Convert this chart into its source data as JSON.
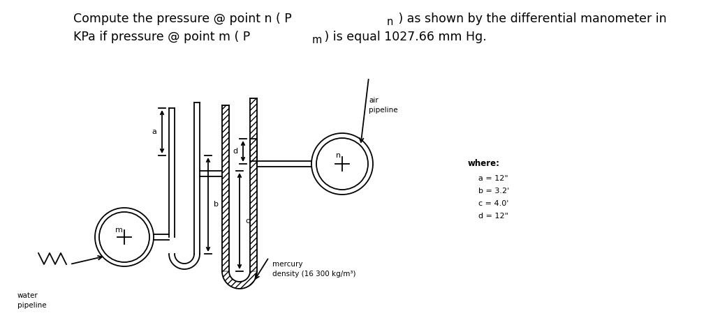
{
  "bg_color": "#ffffff",
  "line_color": "#000000",
  "font_size_title": 12.5,
  "font_size_small": 7.5,
  "font_size_label": 8,
  "where_label": "where:",
  "param_a": "a = 12\"",
  "param_b": "b = 3.2'",
  "param_c": "c = 4.0'",
  "param_d": "d = 12\"",
  "mercury_label": "mercury\ndensity (16 300 kg/m³)",
  "air_pipeline_label": "air\npipeline",
  "water_pipeline_label": "water\npipeline",
  "label_a": "a",
  "label_b": "b",
  "label_c": "c",
  "label_d": "d",
  "label_m": "m",
  "label_n": "n"
}
